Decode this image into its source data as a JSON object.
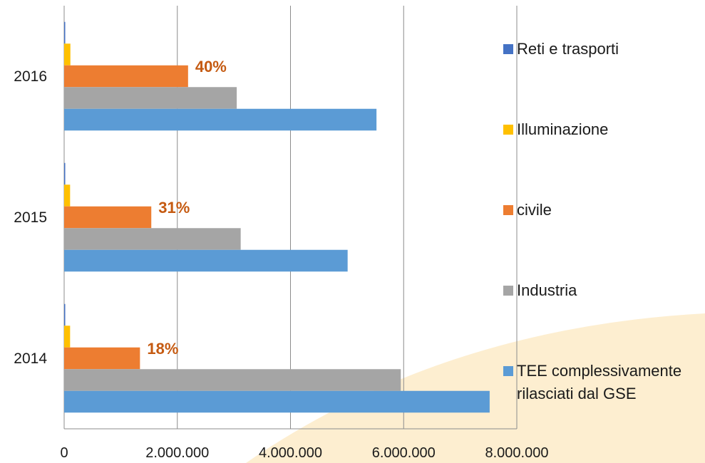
{
  "chart_data": {
    "type": "bar",
    "orientation": "horizontal",
    "categories": [
      "2016",
      "2015",
      "2014"
    ],
    "series": [
      {
        "name": "Reti e trasporti",
        "color": "#4472c4",
        "values": [
          15000,
          4000,
          6000
        ]
      },
      {
        "name": "Illuminazione",
        "color": "#ffc000",
        "values": [
          110000,
          105000,
          105000
        ]
      },
      {
        "name": "civile",
        "color": "#ed7d31",
        "values": [
          2190000,
          1540000,
          1340000
        ]
      },
      {
        "name": "Industria",
        "color": "#a5a5a5",
        "values": [
          3050000,
          3120000,
          5950000
        ]
      },
      {
        "name": "TEE complessivamente rilasciati dal GSE",
        "color": "#5b9bd5",
        "values": [
          5520000,
          5010000,
          7520000
        ]
      }
    ],
    "data_labels": [
      {
        "category": "2016",
        "series": "civile",
        "text": "40%"
      },
      {
        "category": "2015",
        "series": "civile",
        "text": "31%"
      },
      {
        "category": "2014",
        "series": "civile",
        "text": "18%"
      }
    ],
    "x_ticks": [
      "0",
      "2.000.000",
      "4.000.000",
      "6.000.000",
      "8.000.000"
    ],
    "xlim": [
      0,
      8000000
    ],
    "grid": true,
    "legend_position": "right",
    "title": "",
    "xlabel": "",
    "ylabel": ""
  },
  "colors": {
    "accent": "#c55a11",
    "grid": "#8c8c8c",
    "decor": "#fdebc8"
  }
}
